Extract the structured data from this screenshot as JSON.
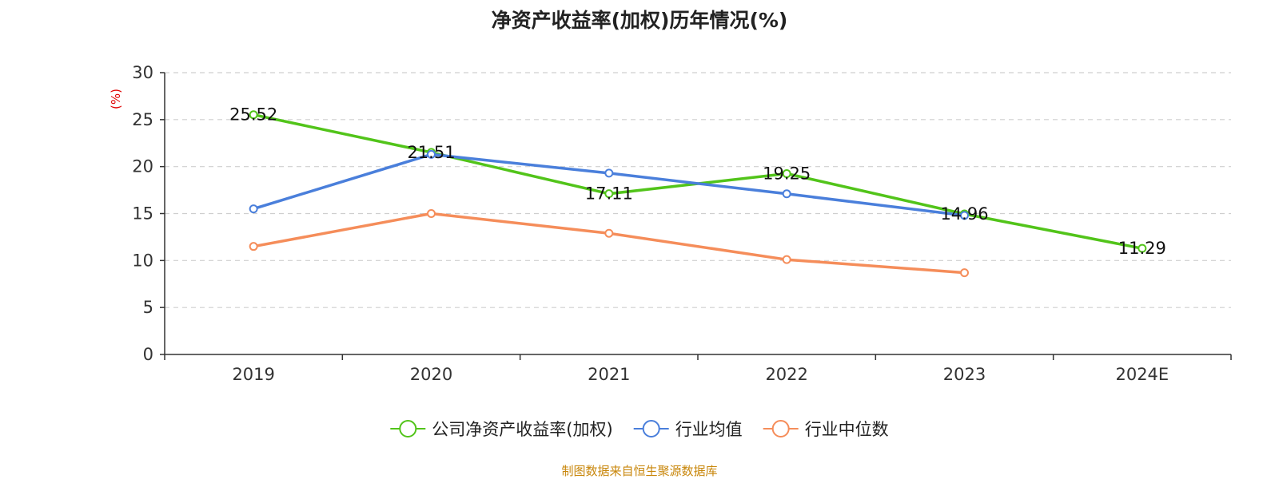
{
  "source_note": "制图数据来自恒生聚源数据库",
  "chart_data": {
    "type": "line",
    "title": "净资产收益率(加权)历年情况(%)",
    "ylabel": "(%)",
    "xlabel": "",
    "ylim": [
      0,
      30
    ],
    "yticks": [
      0,
      5,
      10,
      15,
      20,
      25,
      30
    ],
    "categories": [
      "2019",
      "2020",
      "2021",
      "2022",
      "2023",
      "2024E"
    ],
    "grid": true,
    "legend_position": "bottom",
    "series": [
      {
        "name": "公司净资产收益率(加权)",
        "color": "#52c41a",
        "values": [
          25.52,
          21.51,
          17.11,
          19.25,
          14.96,
          11.29
        ],
        "labels": [
          "25.52",
          "21.51",
          "17.11",
          "19.25",
          "14.96",
          "11.29"
        ]
      },
      {
        "name": "行业均值",
        "color": "#4a7fdb",
        "values": [
          15.5,
          21.3,
          19.3,
          17.1,
          14.8,
          null
        ]
      },
      {
        "name": "行业中位数",
        "color": "#f58d5a",
        "values": [
          11.5,
          15.0,
          12.9,
          10.1,
          8.7,
          null
        ]
      }
    ]
  }
}
